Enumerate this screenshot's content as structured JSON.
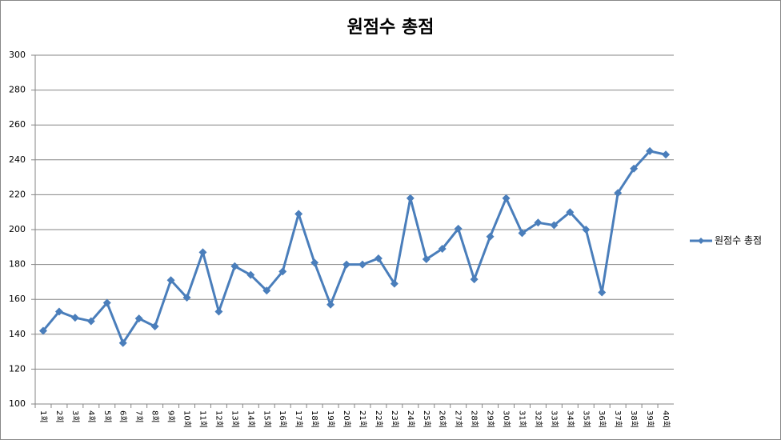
{
  "chart_data": {
    "type": "line",
    "title": "원점수 총점",
    "categories": [
      "1회",
      "2회",
      "3회",
      "4회",
      "5회",
      "6회",
      "7회",
      "8회",
      "9회",
      "10회",
      "11회",
      "12회",
      "13회",
      "14회",
      "15회",
      "16회",
      "17회",
      "18회",
      "19회",
      "20회",
      "21회",
      "22회",
      "23회",
      "24회",
      "25회",
      "26회",
      "27회",
      "28회",
      "29회",
      "30회",
      "31회",
      "32회",
      "33회",
      "34회",
      "35회",
      "36회",
      "37회",
      "38회",
      "39회",
      "40회"
    ],
    "series": [
      {
        "name": "원점수 총점",
        "color": "#4a7ebb",
        "values": [
          142,
          153,
          149.5,
          147.5,
          158,
          135,
          149,
          144.5,
          171,
          161,
          187,
          153,
          179,
          174,
          165,
          176,
          209,
          181,
          157,
          180,
          180,
          183.5,
          169,
          218,
          183,
          189,
          200.5,
          171.5,
          196,
          218,
          198,
          204,
          202.5,
          210,
          200,
          164,
          221,
          235,
          245,
          243
        ]
      }
    ],
    "ylim": [
      100,
      300
    ],
    "yticks": [
      100,
      120,
      140,
      160,
      180,
      200,
      220,
      240,
      260,
      280,
      300
    ],
    "grid": true,
    "legend": "right"
  }
}
